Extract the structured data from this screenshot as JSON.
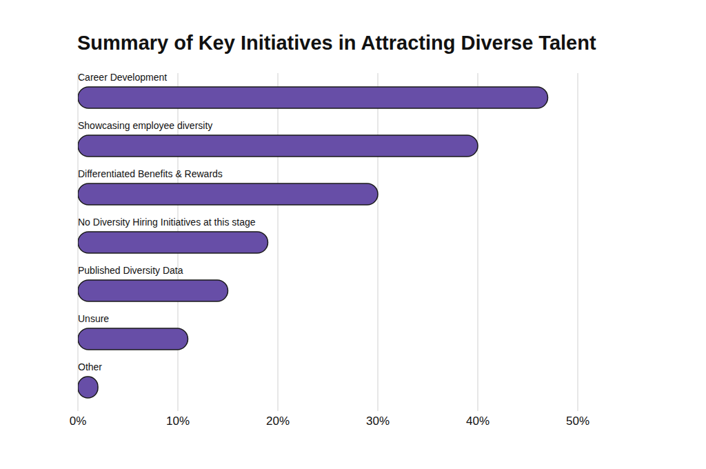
{
  "chart_data": {
    "type": "bar",
    "title": "Summary of Key Initiatives in Attracting Diverse Talent",
    "orientation": "horizontal",
    "categories": [
      "Career Development",
      "Showcasing employee diversity",
      "Differentiated Benefits & Rewards",
      "No Diversity Hiring Initiatives at this stage",
      "Published Diversity Data",
      "Unsure",
      "Other"
    ],
    "values": [
      47,
      40,
      30,
      19,
      15,
      11,
      2
    ],
    "color": "#674ea7",
    "xlim": [
      0,
      50
    ],
    "xticks": [
      {
        "value": 0,
        "label": "0%"
      },
      {
        "value": 10,
        "label": "10%"
      },
      {
        "value": 20,
        "label": "20%"
      },
      {
        "value": 30,
        "label": "30%"
      },
      {
        "value": 40,
        "label": "40%"
      },
      {
        "value": 50,
        "label": "50%"
      }
    ],
    "grid": true
  }
}
